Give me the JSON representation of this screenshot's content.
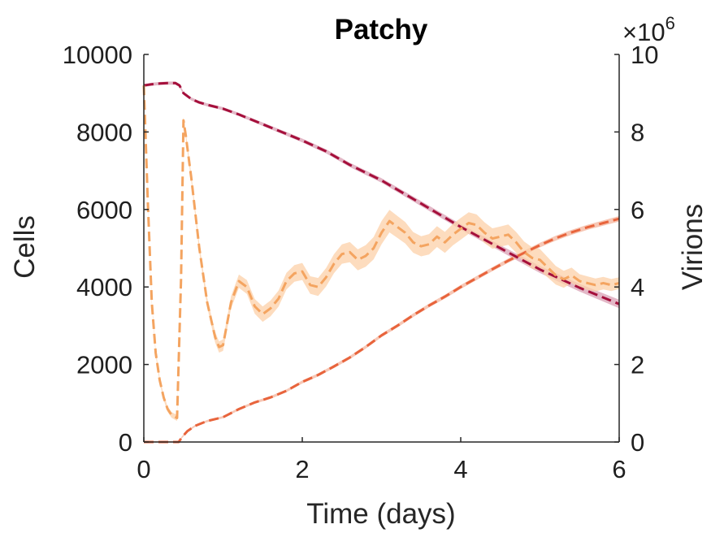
{
  "chart_data": {
    "type": "line",
    "title": "Patchy",
    "xlabel": "Time (days)",
    "ylabel_left": "Cells",
    "ylabel_right": "Virions",
    "xlim": [
      0,
      6
    ],
    "ylim_left": [
      0,
      10000
    ],
    "ylim_right": [
      0,
      10000000
    ],
    "x_ticks": [
      "0",
      "2",
      "4",
      "6"
    ],
    "y_left_ticks": [
      "0",
      "2000",
      "4000",
      "6000",
      "8000",
      "10000"
    ],
    "y_right_ticks": [
      "0",
      "2",
      "4",
      "6",
      "8",
      "10"
    ],
    "right_exponent_base": "×10",
    "right_exponent_power": "6",
    "grid": false,
    "series": [
      {
        "axis": "left",
        "color": "#a50f3b",
        "band_color": "#d9a0b4",
        "dashed": true,
        "points": [
          [
            0,
            9200
          ],
          [
            0.1,
            9230
          ],
          [
            0.2,
            9250
          ],
          [
            0.3,
            9260
          ],
          [
            0.4,
            9260
          ],
          [
            0.45,
            9200
          ],
          [
            0.5,
            9000
          ],
          [
            0.6,
            8850
          ],
          [
            0.7,
            8760
          ],
          [
            0.8,
            8700
          ],
          [
            1.0,
            8600
          ],
          [
            1.2,
            8450
          ],
          [
            1.5,
            8200
          ],
          [
            1.8,
            7950
          ],
          [
            2.0,
            7780
          ],
          [
            2.3,
            7500
          ],
          [
            2.6,
            7150
          ],
          [
            3.0,
            6750
          ],
          [
            3.5,
            6150
          ],
          [
            4.0,
            5550
          ],
          [
            4.5,
            5000
          ],
          [
            5.0,
            4450
          ],
          [
            5.5,
            3980
          ],
          [
            6.0,
            3560
          ]
        ],
        "band": [
          [
            0,
            40
          ],
          [
            1,
            40
          ],
          [
            2,
            50
          ],
          [
            3,
            60
          ],
          [
            4,
            70
          ],
          [
            5,
            90
          ],
          [
            6,
            110
          ]
        ]
      },
      {
        "axis": "left",
        "color": "#e8643c",
        "band_color": "#f4b49c",
        "dashed": true,
        "points": [
          [
            0,
            0
          ],
          [
            0.3,
            0
          ],
          [
            0.44,
            0
          ],
          [
            0.48,
            120
          ],
          [
            0.55,
            280
          ],
          [
            0.65,
            420
          ],
          [
            0.8,
            540
          ],
          [
            1.0,
            640
          ],
          [
            1.2,
            850
          ],
          [
            1.4,
            1020
          ],
          [
            1.6,
            1150
          ],
          [
            1.8,
            1320
          ],
          [
            2.0,
            1550
          ],
          [
            2.2,
            1730
          ],
          [
            2.4,
            1950
          ],
          [
            2.6,
            2180
          ],
          [
            2.8,
            2450
          ],
          [
            3.0,
            2750
          ],
          [
            3.2,
            3000
          ],
          [
            3.4,
            3270
          ],
          [
            3.6,
            3520
          ],
          [
            3.8,
            3750
          ],
          [
            4.0,
            4000
          ],
          [
            4.2,
            4230
          ],
          [
            4.4,
            4460
          ],
          [
            4.6,
            4680
          ],
          [
            4.8,
            4880
          ],
          [
            5.0,
            5080
          ],
          [
            5.2,
            5260
          ],
          [
            5.4,
            5410
          ],
          [
            5.6,
            5540
          ],
          [
            5.8,
            5650
          ],
          [
            6.0,
            5760
          ]
        ],
        "band": [
          [
            0,
            20
          ],
          [
            2,
            40
          ],
          [
            4,
            50
          ],
          [
            6,
            70
          ]
        ]
      },
      {
        "axis": "right",
        "color": "#f4a460",
        "band_color": "#fcd0a8",
        "dashed": true,
        "points": [
          [
            0,
            9200000
          ],
          [
            0.05,
            6200000
          ],
          [
            0.1,
            3600000
          ],
          [
            0.15,
            2300000
          ],
          [
            0.2,
            1600000
          ],
          [
            0.25,
            1150000
          ],
          [
            0.3,
            850000
          ],
          [
            0.35,
            700000
          ],
          [
            0.42,
            620000
          ],
          [
            0.47,
            4200000
          ],
          [
            0.5,
            8300000
          ],
          [
            0.53,
            7900000
          ],
          [
            0.6,
            6800000
          ],
          [
            0.7,
            5000000
          ],
          [
            0.8,
            3600000
          ],
          [
            0.9,
            2700000
          ],
          [
            0.95,
            2450000
          ],
          [
            1.0,
            2500000
          ],
          [
            1.1,
            3600000
          ],
          [
            1.2,
            4150000
          ],
          [
            1.3,
            4000000
          ],
          [
            1.4,
            3500000
          ],
          [
            1.5,
            3300000
          ],
          [
            1.6,
            3450000
          ],
          [
            1.7,
            3700000
          ],
          [
            1.8,
            4150000
          ],
          [
            1.9,
            4350000
          ],
          [
            2.0,
            4400000
          ],
          [
            2.1,
            4050000
          ],
          [
            2.2,
            4000000
          ],
          [
            2.3,
            4250000
          ],
          [
            2.4,
            4600000
          ],
          [
            2.5,
            4850000
          ],
          [
            2.6,
            4900000
          ],
          [
            2.7,
            4700000
          ],
          [
            2.8,
            4800000
          ],
          [
            2.9,
            5000000
          ],
          [
            3.0,
            5400000
          ],
          [
            3.1,
            5700000
          ],
          [
            3.2,
            5550000
          ],
          [
            3.3,
            5400000
          ],
          [
            3.4,
            5150000
          ],
          [
            3.5,
            5050000
          ],
          [
            3.6,
            5100000
          ],
          [
            3.7,
            5300000
          ],
          [
            3.8,
            5150000
          ],
          [
            3.9,
            5350000
          ],
          [
            4.0,
            5500000
          ],
          [
            4.1,
            5650000
          ],
          [
            4.2,
            5600000
          ],
          [
            4.3,
            5400000
          ],
          [
            4.4,
            5250000
          ],
          [
            4.5,
            5300000
          ],
          [
            4.6,
            5350000
          ],
          [
            4.7,
            5150000
          ],
          [
            4.8,
            4900000
          ],
          [
            4.9,
            4750000
          ],
          [
            5.0,
            4700000
          ],
          [
            5.1,
            4500000
          ],
          [
            5.2,
            4300000
          ],
          [
            5.3,
            4200000
          ],
          [
            5.4,
            4300000
          ],
          [
            5.5,
            4150000
          ],
          [
            5.6,
            4100000
          ],
          [
            5.7,
            4050000
          ],
          [
            5.8,
            4100000
          ],
          [
            5.9,
            4050000
          ],
          [
            6.0,
            4100000
          ]
        ],
        "band": [
          [
            0,
            60000
          ],
          [
            0.5,
            80000
          ],
          [
            1,
            150000
          ],
          [
            1.5,
            200000
          ],
          [
            2,
            220000
          ],
          [
            2.5,
            250000
          ],
          [
            3,
            300000
          ],
          [
            3.5,
            260000
          ],
          [
            4,
            280000
          ],
          [
            4.5,
            260000
          ],
          [
            5,
            280000
          ],
          [
            5.5,
            180000
          ],
          [
            6,
            150000
          ]
        ]
      }
    ]
  }
}
